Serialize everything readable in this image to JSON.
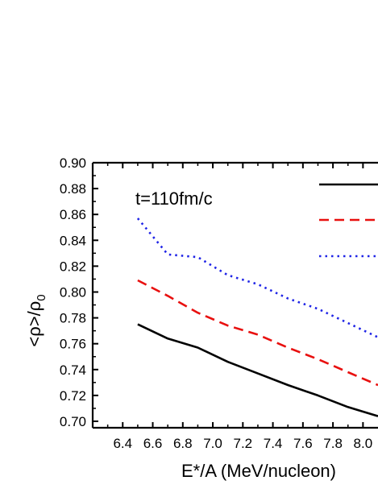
{
  "chart_data": {
    "type": "line",
    "annotation": "t=110fm/c",
    "xlabel": "E*/A (MeV/nucleon)",
    "ylabel": "<ρ>/ρ",
    "ylabel_subscript": "0",
    "xlim": [
      6.2,
      8.1
    ],
    "ylim": [
      0.695,
      0.9
    ],
    "xticks": [
      6.4,
      6.6,
      6.8,
      7.0,
      7.2,
      7.4,
      7.6,
      7.8,
      8.0
    ],
    "xtick_labels": [
      "6.4",
      "6.6",
      "6.8",
      "7.0",
      "7.2",
      "7.4",
      "7.6",
      "7.8",
      "8.0"
    ],
    "yticks": [
      0.7,
      0.72,
      0.74,
      0.76,
      0.78,
      0.8,
      0.82,
      0.84,
      0.86,
      0.88,
      0.9
    ],
    "ytick_labels": [
      "0.70",
      "0.72",
      "0.74",
      "0.76",
      "0.78",
      "0.80",
      "0.82",
      "0.84",
      "0.86",
      "0.88",
      "0.90"
    ],
    "grid": false,
    "legend_position": "top-right",
    "series": [
      {
        "style": "solid",
        "color": "#000000",
        "x": [
          6.5,
          6.7,
          6.9,
          7.1,
          7.3,
          7.5,
          7.7,
          7.9,
          8.1
        ],
        "y": [
          0.775,
          0.764,
          0.757,
          0.746,
          0.737,
          0.728,
          0.72,
          0.711,
          0.704
        ]
      },
      {
        "style": "dashed",
        "color": "#e8100f",
        "x": [
          6.5,
          6.7,
          6.9,
          7.1,
          7.3,
          7.5,
          7.7,
          7.9,
          8.1
        ],
        "y": [
          0.809,
          0.797,
          0.784,
          0.774,
          0.767,
          0.757,
          0.748,
          0.738,
          0.728
        ]
      },
      {
        "style": "dotted",
        "color": "#1f24e6",
        "x": [
          6.5,
          6.7,
          6.9,
          7.1,
          7.3,
          7.5,
          7.7,
          7.9,
          8.1
        ],
        "y": [
          0.857,
          0.829,
          0.827,
          0.813,
          0.806,
          0.795,
          0.787,
          0.776,
          0.765
        ]
      }
    ]
  }
}
